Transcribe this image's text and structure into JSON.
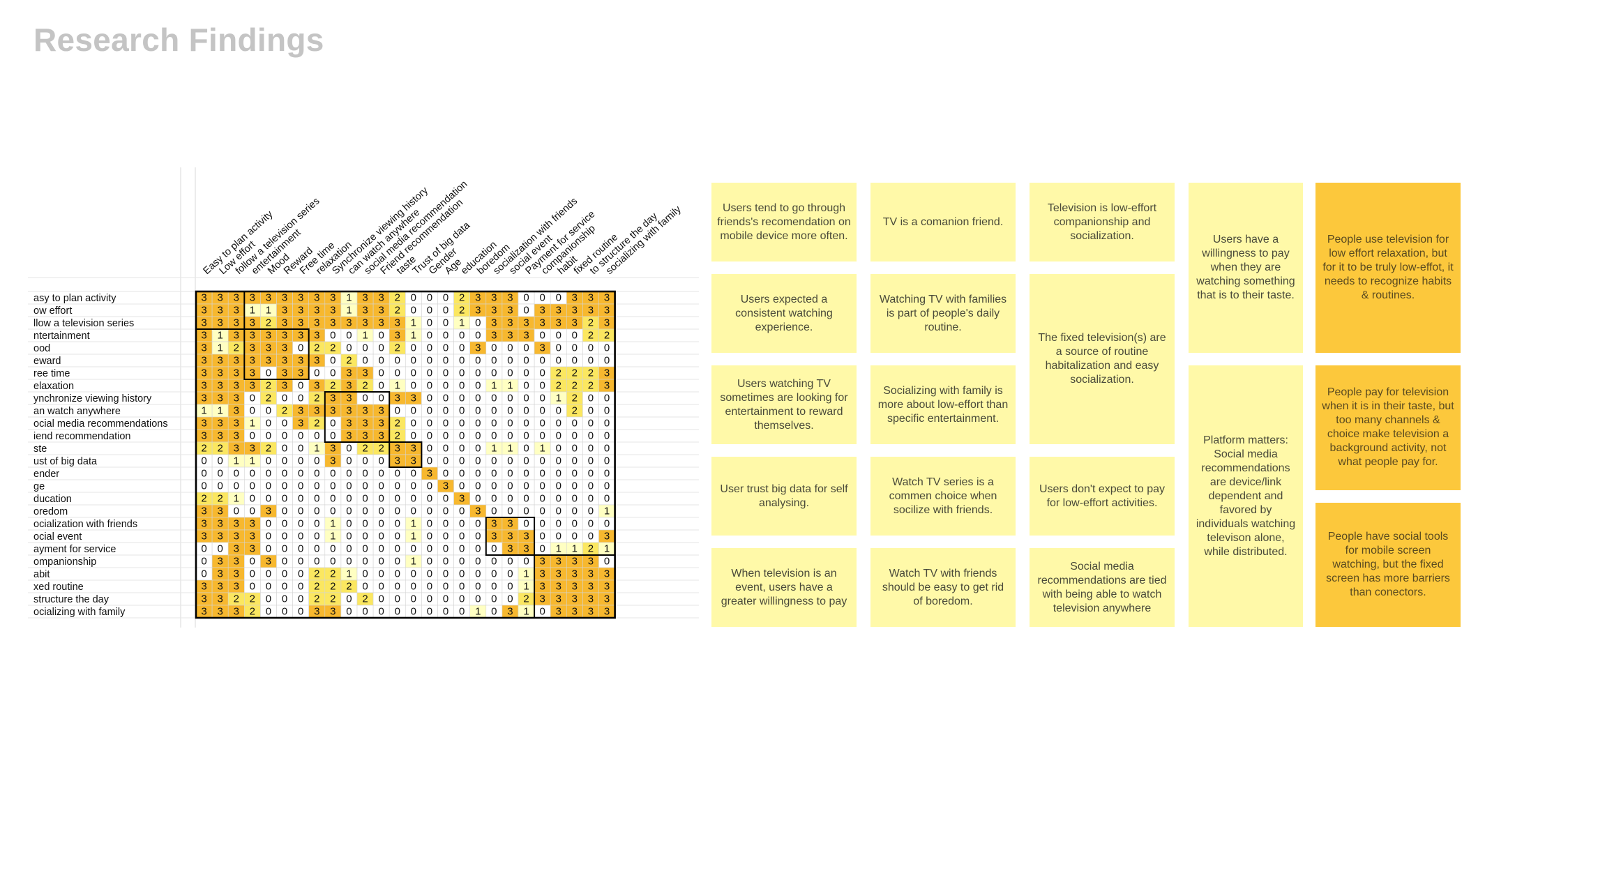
{
  "title": "Research Findings",
  "colors": {
    "level3": "#f7b82f",
    "level2": "#fbe760",
    "level1": "#ffffc2",
    "level0": "#ffffff",
    "card_yellow": "#fff9a8",
    "card_orange": "#fcc83c",
    "title_gray": "#c4c4c4"
  },
  "matrix": {
    "column_labels": [
      "Easy to plan activity",
      "Low effort",
      "follow a television series",
      "entertainment",
      "Mood",
      "Reward",
      "Free time",
      "relaxation",
      "Synchronize viewing history",
      "can watch anywhere",
      "social media recommendation",
      "Friend recommendation",
      "taste",
      "Trust of big data",
      "Gender",
      "Age",
      "education",
      "boredom",
      "socialization with friends",
      "social event",
      "Payment for service",
      "companionship",
      "habit",
      "fixed routine",
      "to structure the day",
      "socializing with family"
    ],
    "row_labels": [
      "asy to plan activity",
      "ow effort",
      "llow a television series",
      "ntertainment",
      "ood",
      "eward",
      "ree time",
      "elaxation",
      "ynchronize viewing history",
      "an watch anywhere",
      "ocial media recommendations",
      "iend recommendation",
      "ste",
      "ust of big data",
      "ender",
      "ge",
      "ducation",
      "oredom",
      "ocialization with friends",
      "ocial event",
      "ayment for service",
      "ompanionship",
      "abit",
      "xed routine",
      "structure the day",
      "ocializing with family"
    ],
    "values": [
      [
        3,
        3,
        3,
        3,
        3,
        3,
        3,
        3,
        3,
        1,
        3,
        3,
        2,
        0,
        0,
        0,
        2,
        3,
        3,
        3,
        0,
        0,
        0,
        3,
        3,
        3
      ],
      [
        3,
        3,
        3,
        1,
        1,
        3,
        3,
        3,
        3,
        1,
        3,
        3,
        2,
        0,
        0,
        0,
        2,
        3,
        3,
        3,
        0,
        3,
        3,
        3,
        3,
        3
      ],
      [
        3,
        3,
        3,
        3,
        2,
        3,
        3,
        3,
        3,
        3,
        3,
        3,
        3,
        1,
        0,
        0,
        1,
        0,
        3,
        3,
        3,
        3,
        3,
        3,
        2,
        3
      ],
      [
        3,
        1,
        3,
        3,
        3,
        3,
        3,
        3,
        0,
        0,
        1,
        0,
        3,
        1,
        0,
        0,
        0,
        0,
        3,
        3,
        3,
        0,
        0,
        0,
        2,
        2
      ],
      [
        3,
        1,
        2,
        3,
        3,
        3,
        0,
        2,
        2,
        0,
        0,
        0,
        2,
        0,
        0,
        0,
        0,
        3,
        0,
        0,
        0,
        3,
        0,
        0,
        0,
        0
      ],
      [
        3,
        3,
        3,
        3,
        3,
        3,
        3,
        3,
        0,
        2,
        0,
        0,
        0,
        0,
        0,
        0,
        0,
        0,
        0,
        0,
        0,
        0,
        0,
        0,
        0,
        0
      ],
      [
        3,
        3,
        3,
        3,
        0,
        3,
        3,
        0,
        0,
        3,
        3,
        0,
        0,
        0,
        0,
        0,
        0,
        0,
        0,
        0,
        0,
        0,
        2,
        2,
        2,
        3
      ],
      [
        3,
        3,
        3,
        3,
        2,
        3,
        0,
        3,
        2,
        3,
        2,
        0,
        1,
        0,
        0,
        0,
        0,
        0,
        1,
        1,
        0,
        0,
        2,
        2,
        2,
        3
      ],
      [
        3,
        3,
        3,
        0,
        2,
        0,
        0,
        2,
        3,
        3,
        0,
        0,
        3,
        3,
        0,
        0,
        0,
        0,
        0,
        0,
        0,
        0,
        1,
        2,
        0,
        0
      ],
      [
        1,
        1,
        3,
        0,
        0,
        2,
        3,
        3,
        3,
        3,
        3,
        3,
        0,
        0,
        0,
        0,
        0,
        0,
        0,
        0,
        0,
        0,
        0,
        2,
        0,
        0
      ],
      [
        3,
        3,
        3,
        1,
        0,
        0,
        3,
        2,
        0,
        3,
        3,
        3,
        2,
        0,
        0,
        0,
        0,
        0,
        0,
        0,
        0,
        0,
        0,
        0,
        0,
        0
      ],
      [
        3,
        3,
        3,
        0,
        0,
        0,
        0,
        0,
        0,
        3,
        3,
        3,
        2,
        0,
        0,
        0,
        0,
        0,
        0,
        0,
        0,
        0,
        0,
        0,
        0,
        0
      ],
      [
        2,
        2,
        3,
        3,
        2,
        0,
        0,
        1,
        3,
        0,
        2,
        2,
        3,
        3,
        0,
        0,
        0,
        0,
        1,
        1,
        0,
        1,
        0,
        0,
        0,
        0
      ],
      [
        0,
        0,
        1,
        1,
        0,
        0,
        0,
        0,
        3,
        0,
        0,
        0,
        3,
        3,
        0,
        0,
        0,
        0,
        0,
        0,
        0,
        0,
        0,
        0,
        0,
        0
      ],
      [
        0,
        0,
        0,
        0,
        0,
        0,
        0,
        0,
        0,
        0,
        0,
        0,
        0,
        0,
        3,
        0,
        0,
        0,
        0,
        0,
        0,
        0,
        0,
        0,
        0,
        0
      ],
      [
        0,
        0,
        0,
        0,
        0,
        0,
        0,
        0,
        0,
        0,
        0,
        0,
        0,
        0,
        0,
        3,
        0,
        0,
        0,
        0,
        0,
        0,
        0,
        0,
        0,
        0
      ],
      [
        2,
        2,
        1,
        0,
        0,
        0,
        0,
        0,
        0,
        0,
        0,
        0,
        0,
        0,
        0,
        0,
        3,
        0,
        0,
        0,
        0,
        0,
        0,
        0,
        0,
        0
      ],
      [
        3,
        3,
        0,
        0,
        3,
        0,
        0,
        0,
        0,
        0,
        0,
        0,
        0,
        0,
        0,
        0,
        0,
        3,
        0,
        0,
        0,
        0,
        0,
        0,
        0,
        1
      ],
      [
        3,
        3,
        3,
        3,
        0,
        0,
        0,
        0,
        1,
        0,
        0,
        0,
        0,
        1,
        0,
        0,
        0,
        0,
        3,
        3,
        0,
        0,
        0,
        0,
        0,
        0
      ],
      [
        3,
        3,
        3,
        3,
        0,
        0,
        0,
        0,
        1,
        0,
        0,
        0,
        0,
        1,
        0,
        0,
        0,
        0,
        3,
        3,
        3,
        0,
        0,
        0,
        0,
        3
      ],
      [
        0,
        0,
        3,
        3,
        0,
        0,
        0,
        0,
        0,
        0,
        0,
        0,
        0,
        0,
        0,
        0,
        0,
        0,
        0,
        3,
        3,
        0,
        1,
        1,
        2,
        1
      ],
      [
        0,
        3,
        3,
        0,
        3,
        0,
        0,
        0,
        0,
        0,
        0,
        0,
        0,
        1,
        0,
        0,
        0,
        0,
        0,
        0,
        0,
        3,
        3,
        3,
        3,
        0
      ],
      [
        0,
        3,
        3,
        0,
        0,
        0,
        0,
        2,
        2,
        1,
        0,
        0,
        0,
        0,
        0,
        0,
        0,
        0,
        0,
        0,
        1,
        3,
        3,
        3,
        3,
        3
      ],
      [
        3,
        3,
        3,
        0,
        0,
        0,
        0,
        2,
        2,
        2,
        0,
        0,
        0,
        0,
        0,
        0,
        0,
        0,
        0,
        0,
        1,
        3,
        3,
        3,
        3,
        3
      ],
      [
        3,
        3,
        2,
        2,
        0,
        0,
        0,
        2,
        2,
        0,
        2,
        0,
        0,
        0,
        0,
        0,
        0,
        0,
        0,
        0,
        2,
        3,
        3,
        3,
        3,
        3
      ],
      [
        3,
        3,
        3,
        2,
        0,
        0,
        0,
        3,
        3,
        0,
        0,
        0,
        0,
        0,
        0,
        0,
        0,
        1,
        0,
        3,
        1,
        0,
        3,
        3,
        3,
        3
      ]
    ],
    "group_boxes": [
      [
        0,
        0,
        2,
        2
      ],
      [
        3,
        3,
        6,
        6
      ],
      [
        8,
        8,
        11,
        11
      ],
      [
        12,
        12,
        13,
        13
      ],
      [
        18,
        18,
        20,
        20
      ],
      [
        21,
        21,
        25,
        25
      ]
    ]
  },
  "cards": [
    {
      "name": "card-friends-recommendation",
      "text": "Users tend to go through friends's recomendation on mobile device more often.",
      "style": "yellow",
      "col": 0,
      "row": 0,
      "span": 1
    },
    {
      "name": "card-consistent-experience",
      "text": "Users expected a consistent watching experience.",
      "style": "yellow",
      "col": 0,
      "row": 1,
      "span": 1
    },
    {
      "name": "card-reward-entertainment",
      "text": "Users watching TV sometimes are looking for entertainment to reward themselves.",
      "style": "yellow",
      "col": 0,
      "row": 2,
      "span": 1
    },
    {
      "name": "card-trust-big-data",
      "text": "User trust big data for self analysing.",
      "style": "yellow",
      "col": 0,
      "row": 3,
      "span": 1
    },
    {
      "name": "card-event-willingness",
      "text": "When television is an event, users have a greater willingness to pay",
      "style": "yellow",
      "col": 0,
      "row": 4,
      "span": 1
    },
    {
      "name": "card-companion-friend",
      "text": "TV is a comanion friend.",
      "style": "yellow",
      "col": 1,
      "row": 0,
      "span": 1
    },
    {
      "name": "card-daily-routine",
      "text": "Watching TV with families is part of people's daily routine.",
      "style": "yellow",
      "col": 1,
      "row": 1,
      "span": 1
    },
    {
      "name": "card-family-low-effort",
      "text": "Socializing with family is more about low-effort than specific entertainment.",
      "style": "yellow",
      "col": 1,
      "row": 2,
      "span": 1
    },
    {
      "name": "card-tv-series-choice",
      "text": "Watch TV series is a commen choice when socilize with friends.",
      "style": "yellow",
      "col": 1,
      "row": 3,
      "span": 1
    },
    {
      "name": "card-friends-boredom",
      "text": "Watch TV with friends should be easy to get rid of boredom.",
      "style": "yellow",
      "col": 1,
      "row": 4,
      "span": 1
    },
    {
      "name": "card-low-effort-companionship",
      "text": "Television is low-effort companionship and socialization.",
      "style": "yellow",
      "col": 2,
      "row": 0,
      "span": 1
    },
    {
      "name": "card-fixed-television",
      "text": "The fixed television(s) are a source of routine habitalization and easy socialization.",
      "style": "yellow",
      "col": 2,
      "row": 1,
      "span": 2
    },
    {
      "name": "card-no-pay-low-effort",
      "text": "Users don't expect to pay for low-effort activities.",
      "style": "yellow",
      "col": 2,
      "row": 3,
      "span": 1
    },
    {
      "name": "card-social-media-tied",
      "text": "Social media recommendations are  tied with being able to watch television anywhere",
      "style": "yellow",
      "col": 2,
      "row": 4,
      "span": 1
    },
    {
      "name": "card-willingness-taste",
      "text": "Users have a willingness to pay when they are watching something that is to their taste.",
      "style": "yellow",
      "col": 3,
      "row": 0,
      "span": 2
    },
    {
      "name": "card-platform-matters",
      "text": "Platform matters: Social media recommendations are device/link dependent and favored by individuals watching televison alone, while distributed.",
      "style": "yellow",
      "col": 3,
      "row": 2,
      "span": 3
    },
    {
      "name": "card-insight-relaxation",
      "text": "People use television for low effort relaxation, but for it to be truly low-effot, it needs to recognize habits & routines.",
      "style": "orange",
      "col": 4,
      "row": 0,
      "span": 2
    },
    {
      "name": "card-insight-payment",
      "text": "People pay for television when it is in their taste, but too many channels & choice make television a background activity, not what people pay for.",
      "style": "orange",
      "col": 4,
      "row": 2,
      "span": 1.5
    },
    {
      "name": "card-insight-social-tools",
      "text": "People have social tools for mobile screen watching, but the fixed screen has more barriers than conectors.",
      "style": "orange",
      "col": 4,
      "row": 3.5,
      "span": 1.5
    }
  ]
}
